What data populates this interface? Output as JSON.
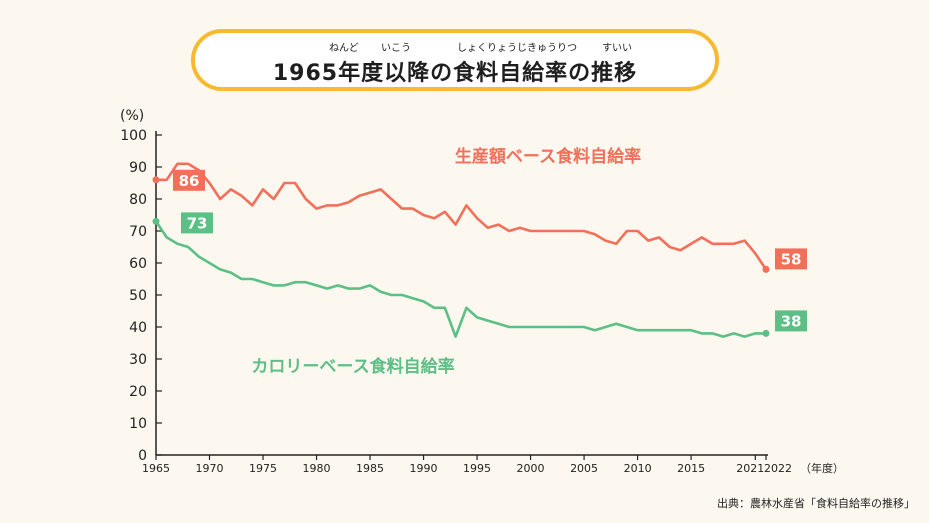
{
  "title": {
    "text": "1965年度以降の食料自給率の推移",
    "ruby": [
      {
        "text": "ねんど",
        "pos": "nendo"
      },
      {
        "text": "いこう",
        "pos": "ikou"
      },
      {
        "text": "しょくりょうじきゅうりつ",
        "pos": "jikyuritsu"
      },
      {
        "text": "すいい",
        "pos": "suii"
      }
    ]
  },
  "source": "出典：農林水産省「食料自給率の推移」",
  "chart_data": {
    "type": "line",
    "ylabel": "(%)",
    "xlabel": "（年度）",
    "ylim": [
      0,
      100
    ],
    "yticks": [
      0,
      10,
      20,
      30,
      40,
      50,
      60,
      70,
      80,
      90,
      100
    ],
    "xlim": [
      1965,
      2022
    ],
    "xticks": [
      "1965",
      "1970",
      "1975",
      "1980",
      "1985",
      "1990",
      "1995",
      "2000",
      "2005",
      "2010",
      "2015",
      "2021",
      "2022"
    ],
    "grid": false,
    "x": [
      1965,
      1966,
      1967,
      1968,
      1969,
      1970,
      1971,
      1972,
      1973,
      1974,
      1975,
      1976,
      1977,
      1978,
      1979,
      1980,
      1981,
      1982,
      1983,
      1984,
      1985,
      1986,
      1987,
      1988,
      1989,
      1990,
      1991,
      1992,
      1993,
      1994,
      1995,
      1996,
      1997,
      1998,
      1999,
      2000,
      2001,
      2002,
      2003,
      2004,
      2005,
      2006,
      2007,
      2008,
      2009,
      2010,
      2011,
      2012,
      2013,
      2014,
      2015,
      2016,
      2017,
      2018,
      2019,
      2020,
      2021,
      2022
    ],
    "series": [
      {
        "name": "生産額ベース食料自給率",
        "color": "#f26f5a",
        "values": [
          86,
          86,
          91,
          91,
          89,
          85,
          80,
          83,
          81,
          78,
          83,
          80,
          85,
          85,
          80,
          77,
          78,
          78,
          79,
          81,
          82,
          83,
          80,
          77,
          77,
          75,
          74,
          76,
          72,
          78,
          74,
          71,
          72,
          70,
          71,
          70,
          70,
          70,
          70,
          70,
          70,
          69,
          67,
          66,
          70,
          70,
          67,
          68,
          65,
          64,
          66,
          68,
          66,
          66,
          66,
          67,
          63,
          58
        ],
        "labels": [
          {
            "x": 1965,
            "text": "86"
          },
          {
            "x": 2022,
            "text": "58"
          }
        ]
      },
      {
        "name": "カロリーベース食料自給率",
        "color": "#5cbf86",
        "values": [
          73,
          68,
          66,
          65,
          62,
          60,
          58,
          57,
          55,
          55,
          54,
          53,
          53,
          54,
          54,
          53,
          52,
          53,
          52,
          52,
          53,
          51,
          50,
          50,
          49,
          48,
          46,
          46,
          37,
          46,
          43,
          42,
          41,
          40,
          40,
          40,
          40,
          40,
          40,
          40,
          40,
          39,
          40,
          41,
          40,
          39,
          39,
          39,
          39,
          39,
          39,
          38,
          38,
          37,
          38,
          37,
          38,
          38
        ],
        "labels": [
          {
            "x": 1965,
            "text": "73"
          },
          {
            "x": 2022,
            "text": "38"
          }
        ]
      }
    ]
  }
}
